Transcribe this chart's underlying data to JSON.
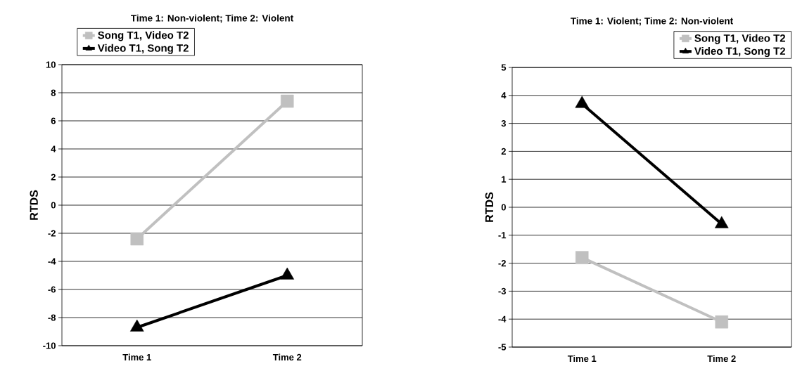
{
  "chart_data": [
    {
      "type": "line",
      "title": "Time 1: Non-violent; Time 2: Violent",
      "ylabel": "RTDS",
      "categories": [
        "Time 1",
        "Time 2"
      ],
      "series": [
        {
          "name": "Song T1, Video T2",
          "color": "#c0c0c0",
          "marker": "square",
          "values": [
            -2.4,
            7.4
          ]
        },
        {
          "name": "Video T1, Song T2",
          "color": "#000000",
          "marker": "triangle",
          "values": [
            -8.7,
            -5.0
          ]
        }
      ],
      "ylim": [
        -10,
        10
      ],
      "yticks": [
        -10,
        -8,
        -6,
        -4,
        -2,
        0,
        2,
        4,
        6,
        8,
        10
      ],
      "grid": "y",
      "legend": "top left",
      "line_style": "solid"
    },
    {
      "type": "line",
      "title": "Time 1: Violent; Time 2: Non-violent",
      "ylabel": "RTDS",
      "categories": [
        "Time 1",
        "Time 2"
      ],
      "series": [
        {
          "name": "Song T1, Video T2",
          "color": "#c0c0c0",
          "marker": "square",
          "values": [
            -1.8,
            -4.1
          ]
        },
        {
          "name": "Video T1, Song T2",
          "color": "#000000",
          "marker": "triangle",
          "values": [
            3.7,
            -0.6
          ]
        }
      ],
      "ylim": [
        -5,
        5
      ],
      "yticks": [
        -5,
        -4,
        -3,
        -2,
        -1,
        0,
        1,
        2,
        3,
        4,
        5
      ],
      "grid": "y",
      "legend": "top right",
      "line_style": "solid"
    }
  ]
}
